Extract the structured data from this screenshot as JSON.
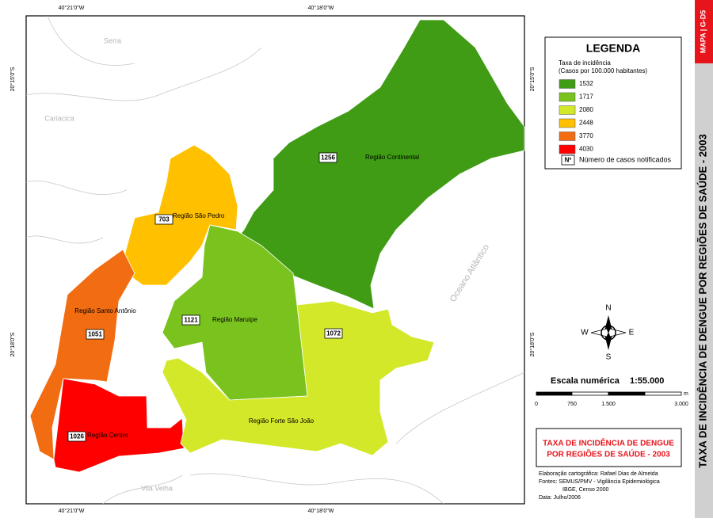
{
  "map": {
    "coordinates": {
      "top": [
        "40°21'0\"W",
        "40°18'0\"W"
      ],
      "bottom": [
        "40°21'0\"W",
        "40°18'0\"W"
      ],
      "left": [
        "20°15'0\"S",
        "20°18'0\"S"
      ],
      "right": [
        "20°15'0\"S",
        "20°18'0\"S"
      ]
    },
    "places": [
      "Serra",
      "Cariacica",
      "Vila Velha",
      "Oceano Atlântico"
    ],
    "regions": [
      {
        "name": "Região Continental",
        "cases": 1256,
        "color": "#3f9c14"
      },
      {
        "name": "Região São Pedro",
        "cases": 703,
        "color": "#ffc000"
      },
      {
        "name": "Região Santo Antônio",
        "cases": 1051,
        "color": "#f26d12"
      },
      {
        "name": "Região Centro",
        "cases": 1026,
        "color": "#ff0000"
      },
      {
        "name": "Região Maruípe",
        "cases": 1121,
        "color": "#7ac31e"
      },
      {
        "name": "Região Forte São João",
        "cases": 1072,
        "color": "#d4e82a"
      }
    ]
  },
  "legend": {
    "title": "LEGENDA",
    "subtitle": "Taxa de incidência",
    "subtitle_units": "(Casos por 100.000 habitantes)",
    "items": [
      {
        "label": "1532",
        "color": "#3f9c14"
      },
      {
        "label": "1717",
        "color": "#7ac31e"
      },
      {
        "label": "2080",
        "color": "#d4e82a"
      },
      {
        "label": "2448",
        "color": "#ffc000"
      },
      {
        "label": "3770",
        "color": "#f26d12"
      },
      {
        "label": "4030",
        "color": "#ff0000"
      }
    ],
    "count_symbol": "Nº",
    "count_label": "Número de casos notificados"
  },
  "compass": {
    "north": "N",
    "south": "S",
    "east": "E",
    "west": "W"
  },
  "scale": {
    "title": "Escala numérica",
    "ratio": "1:55.000",
    "ticks": [
      "0",
      "750",
      "1.500",
      "3.000"
    ],
    "unit": "m"
  },
  "title_box": {
    "lines": [
      "TAXA DE INCIDÊNCIA DE DENGUE",
      "POR REGIÕES DE SAÚDE - 2003"
    ]
  },
  "credits": [
    "Elaboração cartográfica: Rafael Dias de Almeida",
    "Fontes: SEMUS/PMV - Vigilância Epidemiológica",
    "IBGE, Censo 2000",
    "Data: Julho/2006"
  ],
  "side": {
    "code": "MAPA | G-D5",
    "title": "TAXA DE INCIDÊNCIA DE DENGUE POR REGIÕES DE SAÚDE - 2003"
  }
}
